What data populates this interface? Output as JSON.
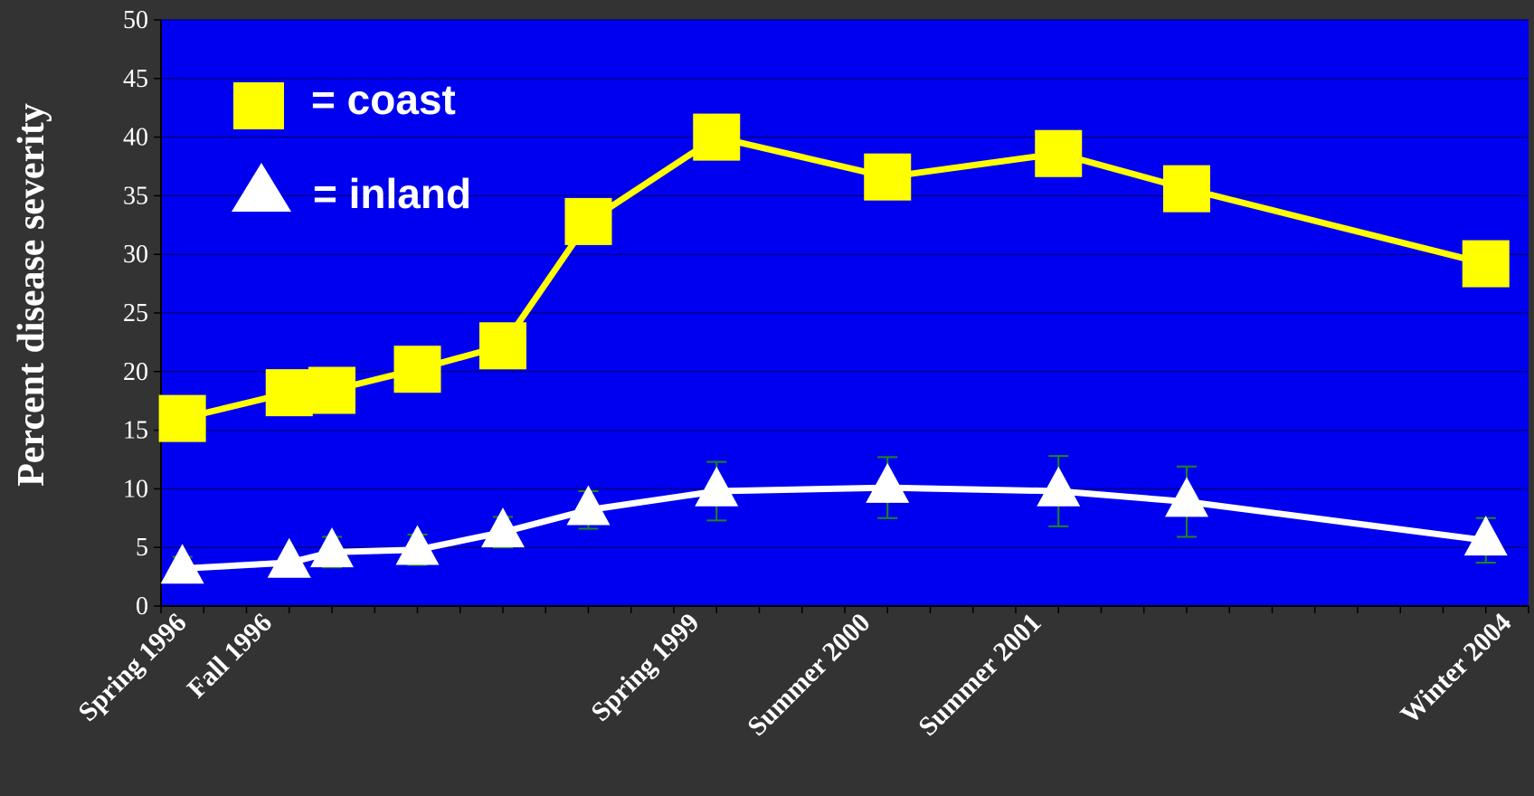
{
  "colors": {
    "page_background": "#333333",
    "plot_background": "#0000f0",
    "gridline": "#00008a",
    "axis": "#000000",
    "coast": "#ffff00",
    "inland": "#ffffff",
    "error_bar": "#1a8a1a"
  },
  "chart_data": {
    "type": "line",
    "title": "",
    "xlabel": "",
    "ylabel": "Percent disease severity",
    "ylim": [
      0,
      50
    ],
    "y_ticks": [
      "0",
      "5",
      "10",
      "15",
      "20",
      "25",
      "30",
      "35",
      "40",
      "45",
      "50"
    ],
    "x_categories": [
      "Spring 1996",
      "",
      "Fall 1996",
      "",
      "",
      "",
      "",
      "",
      "",
      "",
      "",
      "",
      "Spring 1999",
      "",
      "",
      "",
      "Summer 2000",
      "",
      "",
      "",
      "Summer 2001",
      "",
      "",
      "",
      "",
      "",
      "",
      "",
      "",
      "",
      "",
      "Winter 2004"
    ],
    "x_tick_labels": [
      {
        "index": 0,
        "label": "Spring 1996"
      },
      {
        "index": 2,
        "label": "Fall 1996"
      },
      {
        "index": 12,
        "label": "Spring 1999"
      },
      {
        "index": 16,
        "label": "Summer 2000"
      },
      {
        "index": 20,
        "label": "Summer 2001"
      },
      {
        "index": 31,
        "label": "Winter 2004"
      }
    ],
    "grid": true,
    "legend_position": "top-left",
    "series": [
      {
        "name": "coast",
        "legend_label": "= coast",
        "marker": "square",
        "x_index": [
          0,
          2.5,
          3.5,
          5.5,
          7.5,
          9.5,
          12.5,
          16.5,
          20.5,
          23.5,
          30.5
        ],
        "values": [
          16,
          18.2,
          18.4,
          20.2,
          22.2,
          32.8,
          40,
          36.6,
          38.6,
          35.6,
          29.2
        ],
        "errors": [
          null,
          null,
          null,
          null,
          null,
          null,
          null,
          null,
          null,
          null,
          null
        ]
      },
      {
        "name": "inland",
        "legend_label": "= inland",
        "marker": "triangle",
        "x_index": [
          0,
          2.5,
          3.5,
          5.5,
          7.5,
          9.5,
          12.5,
          16.5,
          20.5,
          23.5,
          30.5
        ],
        "values": [
          3.2,
          3.7,
          4.6,
          4.8,
          6.3,
          8.2,
          9.8,
          10.1,
          9.8,
          8.9,
          5.6
        ],
        "errors": [
          1.0,
          0.5,
          1.3,
          1.3,
          1.3,
          1.6,
          2.5,
          2.6,
          3.0,
          3.0,
          1.9
        ]
      }
    ]
  }
}
